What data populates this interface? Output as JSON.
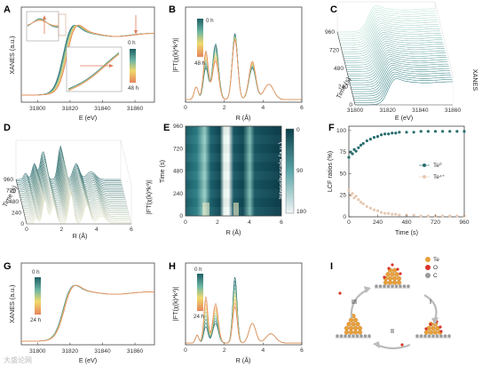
{
  "chart_data": [
    {
      "panel": "A",
      "type": "line",
      "xlabel": "E (eV)",
      "ylabel": "XANES (a.u.)",
      "xticks": [
        "31800",
        "31820",
        "31840",
        "31860"
      ],
      "xlim": [
        31790,
        31872
      ],
      "colorbar": {
        "top": "0 h",
        "bottom": "48 h"
      }
    },
    {
      "panel": "B",
      "type": "line",
      "xlabel": "R (Å)",
      "ylabel": "|FT(χ(k)*k³)|",
      "xticks": [
        "0",
        "2",
        "4",
        "6"
      ],
      "xlim": [
        0,
        6
      ],
      "colorbar": {
        "top": "0 h",
        "bottom": "48 h"
      }
    },
    {
      "panel": "C",
      "type": "area",
      "xlabel": "E (eV)",
      "ylabel": "Time (s)",
      "zlabel": "XANES",
      "xticks": [
        "31800",
        "31820",
        "31840",
        "31860"
      ],
      "yticks": [
        "0",
        "240",
        "480",
        "720",
        "960"
      ]
    },
    {
      "panel": "D",
      "type": "area",
      "xlabel": "R (Å)",
      "ylabel": "Time (s)",
      "zlabel": "|FT(χ(k)*k³)|",
      "xticks": [
        "0",
        "2",
        "4",
        "6"
      ],
      "yticks": [
        "0",
        "240",
        "480",
        "720",
        "960"
      ]
    },
    {
      "panel": "E",
      "type": "heatmap",
      "xlabel": "R (Å)",
      "ylabel": "Time (s)",
      "xticks": [
        "0",
        "2",
        "4",
        "6"
      ],
      "yticks": [
        "0",
        "240",
        "480",
        "720",
        "960"
      ],
      "colorbar_label": "Intensity scale (a.u.)",
      "colorbar_ticks": [
        "0",
        "90",
        "180"
      ]
    },
    {
      "panel": "F",
      "type": "scatter",
      "xlabel": "Time (s)",
      "ylabel": "LCF ratios (%)",
      "xticks": [
        "0",
        "240",
        "480",
        "720",
        "960"
      ],
      "xlim": [
        0,
        960
      ],
      "yticks": [
        "0",
        "25",
        "50",
        "75",
        "100"
      ],
      "ylim": [
        0,
        105
      ],
      "legend": "right",
      "series": [
        {
          "name": "Te⁰",
          "color": "#2a6e6e",
          "x": [
            0,
            15,
            30,
            45,
            60,
            80,
            100,
            120,
            150,
            180,
            210,
            240,
            270,
            300,
            330,
            360,
            390,
            420,
            480,
            540,
            600,
            660,
            720,
            780,
            840,
            900,
            960
          ],
          "y": [
            69,
            75,
            73,
            78,
            76,
            80,
            83,
            85,
            88,
            90,
            92,
            93,
            95,
            96,
            96,
            97,
            97,
            98,
            98,
            98,
            99,
            99,
            99,
            99,
            99,
            99,
            99
          ]
        },
        {
          "name": "Te⁴⁺",
          "color": "#e8c9b4",
          "x": [
            0,
            15,
            30,
            45,
            60,
            80,
            100,
            120,
            150,
            180,
            210,
            240,
            270,
            300,
            330,
            360,
            390,
            420,
            480,
            540,
            600,
            660,
            720,
            780,
            840,
            900,
            960
          ],
          "y": [
            31,
            25,
            27,
            22,
            24,
            20,
            17,
            15,
            12,
            10,
            8,
            7,
            5,
            4,
            4,
            3,
            3,
            2,
            2,
            2,
            1,
            1,
            1,
            1,
            1,
            1,
            1
          ]
        }
      ]
    },
    {
      "panel": "G",
      "type": "line",
      "xlabel": "E (eV)",
      "ylabel": "XANES (a.u.)",
      "xticks": [
        "31800",
        "31820",
        "31840",
        "31860"
      ],
      "xlim": [
        31790,
        31872
      ],
      "colorbar": {
        "top": "0 h",
        "bottom": "24 h"
      }
    },
    {
      "panel": "H",
      "type": "line",
      "xlabel": "R (Å)",
      "ylabel": "|FT(χ(k)*k³)|",
      "xticks": [
        "0",
        "2",
        "4",
        "6"
      ],
      "xlim": [
        0,
        6
      ],
      "colorbar": {
        "top": "0 h",
        "bottom": "24 h"
      }
    }
  ],
  "panel_labels": [
    "A",
    "B",
    "C",
    "D",
    "E",
    "F",
    "G",
    "H",
    "I"
  ],
  "scheme_i": {
    "legend": [
      "Te",
      "O",
      "C"
    ],
    "colors": {
      "Te": "#e8a13a",
      "O": "#d9342b",
      "C": "#9a9a9a"
    },
    "steps": [
      "I",
      "II",
      "III"
    ]
  },
  "watermark": "大盛论网",
  "colors": {
    "start": "#1d5f64",
    "mid": "#6fb7a4",
    "late": "#f0d96c",
    "end": "#e5855c"
  }
}
